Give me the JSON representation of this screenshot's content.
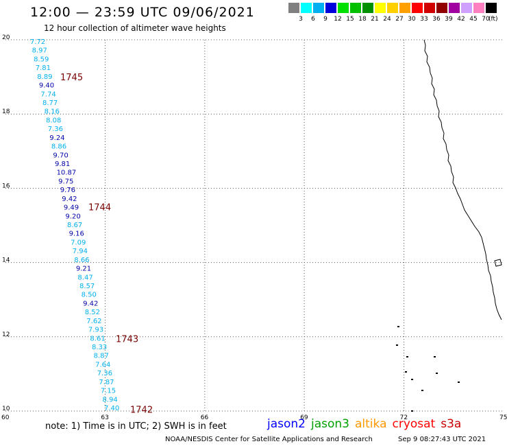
{
  "header": {
    "title": "12:00 — 23:59 UTC 09/06/2021",
    "subtitle": "12 hour collection of altimeter wave heights"
  },
  "legend": {
    "unit": "(ft)",
    "ticks": [
      "3",
      "6",
      "9",
      "12",
      "15",
      "18",
      "21",
      "24",
      "27",
      "30",
      "33",
      "36",
      "39",
      "42",
      "45",
      "70"
    ],
    "colors": [
      "#808080",
      "#00ffff",
      "#00b0f0",
      "#0000dd",
      "#00e000",
      "#00c000",
      "#009000",
      "#ffff00",
      "#ffd000",
      "#ffa000",
      "#ff0000",
      "#d00000",
      "#900000",
      "#a000a0",
      "#d0a0ff",
      "#ff80c0",
      "#000000"
    ]
  },
  "axes": {
    "x_ticks": [
      "60",
      "63",
      "66",
      "69",
      "72",
      "75"
    ],
    "y_ticks": [
      "10",
      "12",
      "14",
      "16",
      "18",
      "20"
    ]
  },
  "passes": [
    {
      "id": "1745",
      "lat": 19.0
    },
    {
      "id": "1744",
      "lat": 15.5
    },
    {
      "id": "1743",
      "lat": 11.95
    },
    {
      "id": "1742",
      "lat": 10.05
    }
  ],
  "readings": [
    {
      "v": "7.72",
      "c": "#00b0f0"
    },
    {
      "v": "8.97",
      "c": "#00b0f0"
    },
    {
      "v": "8.59",
      "c": "#00b0f0"
    },
    {
      "v": "7.81",
      "c": "#00b0f0"
    },
    {
      "v": "8.89",
      "c": "#00b0f0"
    },
    {
      "v": "9.40",
      "c": "#0000aa"
    },
    {
      "v": "7.74",
      "c": "#00b0f0"
    },
    {
      "v": "8.77",
      "c": "#00b0f0"
    },
    {
      "v": "8.16",
      "c": "#00b0f0"
    },
    {
      "v": "8.08",
      "c": "#00b0f0"
    },
    {
      "v": "7.36",
      "c": "#00b0f0"
    },
    {
      "v": "9.24",
      "c": "#0000aa"
    },
    {
      "v": "8.86",
      "c": "#00b0f0"
    },
    {
      "v": "9.70",
      "c": "#0000aa"
    },
    {
      "v": "9.81",
      "c": "#0000aa"
    },
    {
      "v": "10.87",
      "c": "#0000aa"
    },
    {
      "v": "9.75",
      "c": "#0000aa"
    },
    {
      "v": "9.76",
      "c": "#0000aa"
    },
    {
      "v": "9.42",
      "c": "#0000aa"
    },
    {
      "v": "9.49",
      "c": "#0000aa"
    },
    {
      "v": "9.20",
      "c": "#0000aa"
    },
    {
      "v": "8.67",
      "c": "#00b0f0"
    },
    {
      "v": "9.16",
      "c": "#0000aa"
    },
    {
      "v": "7.09",
      "c": "#00b0f0"
    },
    {
      "v": "7.94",
      "c": "#00b0f0"
    },
    {
      "v": "8.66",
      "c": "#00b0f0"
    },
    {
      "v": "9.21",
      "c": "#0000aa"
    },
    {
      "v": "8.47",
      "c": "#00b0f0"
    },
    {
      "v": "8.57",
      "c": "#00b0f0"
    },
    {
      "v": "8.50",
      "c": "#00b0f0"
    },
    {
      "v": "9.42",
      "c": "#0000aa"
    },
    {
      "v": "8.52",
      "c": "#00b0f0"
    },
    {
      "v": "7.62",
      "c": "#00b0f0"
    },
    {
      "v": "7.93",
      "c": "#00b0f0"
    },
    {
      "v": "8.61",
      "c": "#00b0f0"
    },
    {
      "v": "8.33",
      "c": "#00b0f0"
    },
    {
      "v": "8.87",
      "c": "#00b0f0"
    },
    {
      "v": "7.64",
      "c": "#00b0f0"
    },
    {
      "v": "7.36",
      "c": "#00b0f0"
    },
    {
      "v": "7.87",
      "c": "#00b0f0"
    },
    {
      "v": "7.15",
      "c": "#00b0f0"
    },
    {
      "v": "8.94",
      "c": "#00b0f0"
    },
    {
      "v": "7.40",
      "c": "#00b0f0"
    }
  ],
  "note": "note: 1) Time is in UTC; 2) SWH is in feet",
  "satellites": [
    {
      "name": "jason2",
      "color": "#0000ff"
    },
    {
      "name": "jason3",
      "color": "#00a000"
    },
    {
      "name": "altika",
      "color": "#ff9900"
    },
    {
      "name": "cryosat",
      "color": "#ff0000"
    },
    {
      "name": "s3a",
      "color": "#cc0000"
    }
  ],
  "footer": {
    "org": "NOAA/NESDIS Center for Satellite Applications and Research",
    "timestamp": "Sep  9 08:27:43 UTC 2021"
  }
}
